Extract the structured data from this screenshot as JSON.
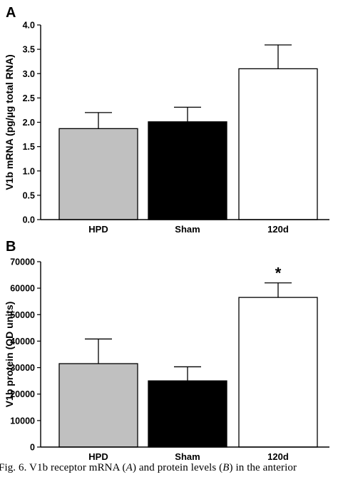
{
  "chart_data": [
    {
      "type": "bar",
      "panel_label": "A",
      "categories": [
        "HPD",
        "Sham",
        "120d"
      ],
      "values": [
        1.87,
        2.01,
        3.1
      ],
      "errors": [
        0.33,
        0.3,
        0.49
      ],
      "bar_colors": [
        "#c0c0c0",
        "#000000",
        "#ffffff"
      ],
      "ylabel": "V1b mRNA (pg/µg total RNA)",
      "ylim": [
        0,
        4.0
      ],
      "yticks": [
        "0.0",
        "0.5",
        "1.0",
        "1.5",
        "2.0",
        "2.5",
        "3.0",
        "3.5",
        "4.0"
      ],
      "annotations": [],
      "grid": false
    },
    {
      "type": "bar",
      "panel_label": "B",
      "categories": [
        "HPD",
        "Sham",
        "120d"
      ],
      "values": [
        31500,
        25000,
        56500
      ],
      "errors": [
        9300,
        5300,
        5500
      ],
      "bar_colors": [
        "#c0c0c0",
        "#000000",
        "#ffffff"
      ],
      "ylabel": "V1b protein (OD units)",
      "ylim": [
        0,
        70000
      ],
      "yticks": [
        "0",
        "10000",
        "20000",
        "30000",
        "40000",
        "50000",
        "60000",
        "70000"
      ],
      "annotations": [
        "",
        "",
        "*"
      ],
      "grid": false
    }
  ],
  "caption": {
    "text_1": "Fig. 6.  V1b receptor mRNA (",
    "italic_1": "A",
    "text_2": ") and protein levels (",
    "italic_2": "B",
    "text_3": ") in the anterior"
  }
}
